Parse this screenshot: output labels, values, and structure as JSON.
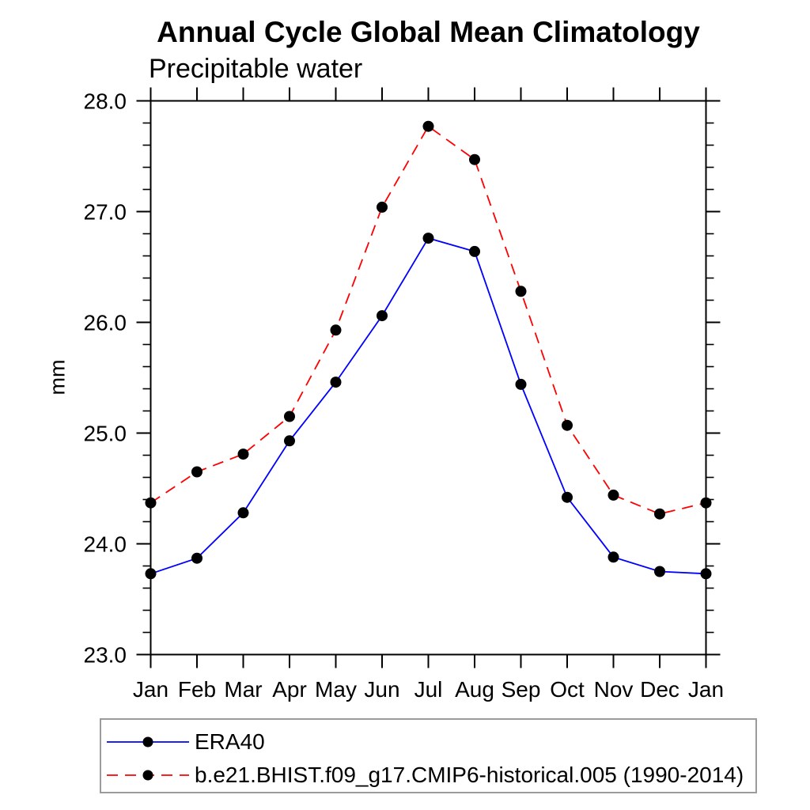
{
  "chart_data": {
    "type": "line",
    "title": "Annual Cycle Global Mean Climatology",
    "subtitle": "Precipitable water",
    "ylabel": "mm",
    "categories": [
      "Jan",
      "Feb",
      "Mar",
      "Apr",
      "May",
      "Jun",
      "Jul",
      "Aug",
      "Sep",
      "Oct",
      "Nov",
      "Dec",
      "Jan"
    ],
    "ylim": [
      23.0,
      28.0
    ],
    "ytick_interval": 1.0,
    "yminor_interval": 0.2,
    "ytick_labels": [
      "23.0",
      "24.0",
      "25.0",
      "26.0",
      "27.0",
      "28.0"
    ],
    "grid": false,
    "legend_position": "bottom",
    "axis_color": "#000000",
    "background_color": "#ffffff",
    "marker": "filled-circle",
    "marker_color": "#000000",
    "series": [
      {
        "name": "ERA40",
        "color": "#0000ff",
        "line_style": "solid",
        "values": [
          23.73,
          23.87,
          24.28,
          24.93,
          25.46,
          26.06,
          26.76,
          26.64,
          25.44,
          24.42,
          23.88,
          23.75,
          23.73
        ]
      },
      {
        "name": "b.e21.BHIST.f09_g17.CMIP6-historical.005 (1990-2014)",
        "color": "#ff0000",
        "line_style": "dashed",
        "values": [
          24.37,
          24.65,
          24.81,
          25.15,
          25.93,
          27.04,
          27.77,
          27.47,
          26.28,
          25.07,
          24.44,
          24.27,
          24.37
        ]
      }
    ]
  }
}
